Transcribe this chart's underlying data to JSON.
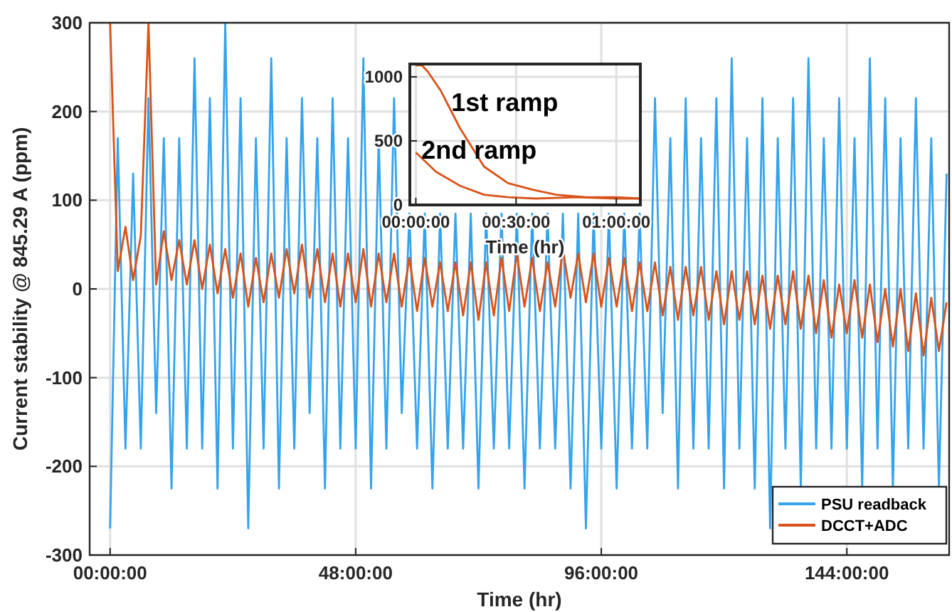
{
  "chart_data": [
    {
      "type": "line",
      "xlabel": "Time (hr)",
      "ylabel": "Current stability @ 845.29 A (ppm)",
      "xlim": [
        -4,
        164
      ],
      "ylim": [
        -300,
        300
      ],
      "xticks": [
        {
          "value": 0,
          "label": "00:00:00"
        },
        {
          "value": 48,
          "label": "48:00:00"
        },
        {
          "value": 96,
          "label": "96:00:00"
        },
        {
          "value": 144,
          "label": "144:00:00"
        }
      ],
      "yticks": [
        -300,
        -200,
        -100,
        0,
        100,
        200,
        300
      ],
      "grid": true,
      "legend": "bottom right",
      "x": [
        0,
        1.5,
        3,
        4.5,
        6,
        7.5,
        9,
        10.5,
        12,
        13.5,
        15,
        16.5,
        18,
        19.5,
        21,
        22.5,
        24,
        25.5,
        27,
        28.5,
        30,
        31.5,
        33,
        34.5,
        36,
        37.5,
        39,
        40.5,
        42,
        43.5,
        45,
        46.5,
        48,
        49.5,
        51,
        52.5,
        54,
        55.5,
        57,
        58.5,
        60,
        61.5,
        63,
        64.5,
        66,
        67.5,
        69,
        70.5,
        72,
        73.5,
        75,
        76.5,
        78,
        79.5,
        81,
        82.5,
        84,
        85.5,
        87,
        88.5,
        90,
        91.5,
        93,
        94.5,
        96,
        97.5,
        99,
        100.5,
        102,
        103.5,
        105,
        106.5,
        108,
        109.5,
        111,
        112.5,
        114,
        115.5,
        117,
        118.5,
        120,
        121.5,
        123,
        124.5,
        126,
        127.5,
        129,
        130.5,
        132,
        133.5,
        135,
        136.5,
        138,
        139.5,
        141,
        142.5,
        144,
        145.5,
        147,
        148.5,
        150,
        151.5,
        153,
        154.5,
        156,
        157.5,
        159,
        160.5,
        162,
        163.5
      ],
      "series": [
        {
          "name": "PSU readback",
          "color": "#35a3ec",
          "values": [
            -270,
            170,
            -180,
            130,
            -180,
            215,
            -140,
            170,
            -225,
            170,
            -180,
            260,
            -180,
            215,
            -225,
            300,
            -180,
            215,
            -270,
            170,
            -180,
            260,
            -225,
            170,
            -180,
            215,
            -140,
            170,
            -225,
            215,
            -180,
            170,
            -180,
            260,
            -225,
            170,
            -180,
            215,
            -140,
            85,
            -180,
            85,
            -225,
            85,
            -180,
            85,
            -180,
            85,
            -225,
            85,
            -180,
            85,
            -180,
            85,
            -225,
            85,
            -180,
            85,
            -180,
            85,
            -225,
            85,
            -270,
            85,
            -180,
            85,
            -225,
            85,
            -180,
            85,
            -180,
            215,
            -140,
            170,
            -225,
            215,
            -180,
            170,
            -180,
            215,
            -225,
            260,
            -180,
            170,
            -225,
            215,
            -270,
            170,
            -180,
            215,
            -225,
            260,
            -180,
            170,
            -180,
            215,
            -180,
            170,
            -225,
            260,
            -180,
            215,
            -225,
            170,
            -180,
            215,
            -180,
            170,
            -225,
            130
          ]
        },
        {
          "name": "DCCT+ADC",
          "color": "#d95319",
          "values": [
            300,
            20,
            70,
            10,
            60,
            300,
            5,
            65,
            10,
            55,
            5,
            55,
            0,
            50,
            -5,
            45,
            -10,
            40,
            -20,
            35,
            -15,
            40,
            -10,
            45,
            -5,
            50,
            -10,
            45,
            -15,
            40,
            -20,
            40,
            -15,
            45,
            -20,
            40,
            -15,
            40,
            -20,
            35,
            -25,
            35,
            -20,
            30,
            -25,
            30,
            -30,
            30,
            -35,
            30,
            -30,
            35,
            -25,
            40,
            -20,
            35,
            -25,
            30,
            -20,
            45,
            -10,
            40,
            -15,
            40,
            -20,
            35,
            -20,
            35,
            -25,
            30,
            -25,
            30,
            -30,
            25,
            -35,
            25,
            -30,
            25,
            -35,
            20,
            -40,
            20,
            -35,
            20,
            -40,
            15,
            -45,
            15,
            -40,
            20,
            -45,
            15,
            -50,
            10,
            -55,
            5,
            -50,
            10,
            -55,
            5,
            -60,
            0,
            -65,
            0,
            -70,
            -5,
            -75,
            -10,
            -70,
            -15
          ]
        }
      ]
    },
    {
      "type": "line",
      "xlabel": "Time (hr)",
      "xlim": [
        -0.03,
        1.12
      ],
      "ylim": [
        0,
        1100
      ],
      "xticks": [
        {
          "value": 0,
          "label": "00:00:00"
        },
        {
          "value": 0.5,
          "label": "00:30:00"
        },
        {
          "value": 1,
          "label": "01:00:00"
        }
      ],
      "yticks": [
        0,
        500,
        1000
      ],
      "grid": true,
      "annotations": [
        "1st ramp",
        "2nd ramp"
      ],
      "series": [
        {
          "color": "#d95319",
          "x": [
            0,
            0.03,
            0.06,
            0.125,
            0.22,
            0.34,
            0.46,
            0.58,
            0.7,
            0.85,
            1.0,
            1.12
          ],
          "values": [
            1090,
            1090,
            1040,
            890,
            600,
            300,
            170,
            120,
            80,
            60,
            60,
            50
          ]
        },
        {
          "color": "#d95319",
          "x": [
            0,
            0.1,
            0.22,
            0.34,
            0.46,
            0.6,
            0.8,
            1.0,
            1.12
          ],
          "values": [
            410,
            260,
            150,
            80,
            60,
            50,
            60,
            50,
            50
          ]
        }
      ]
    }
  ]
}
